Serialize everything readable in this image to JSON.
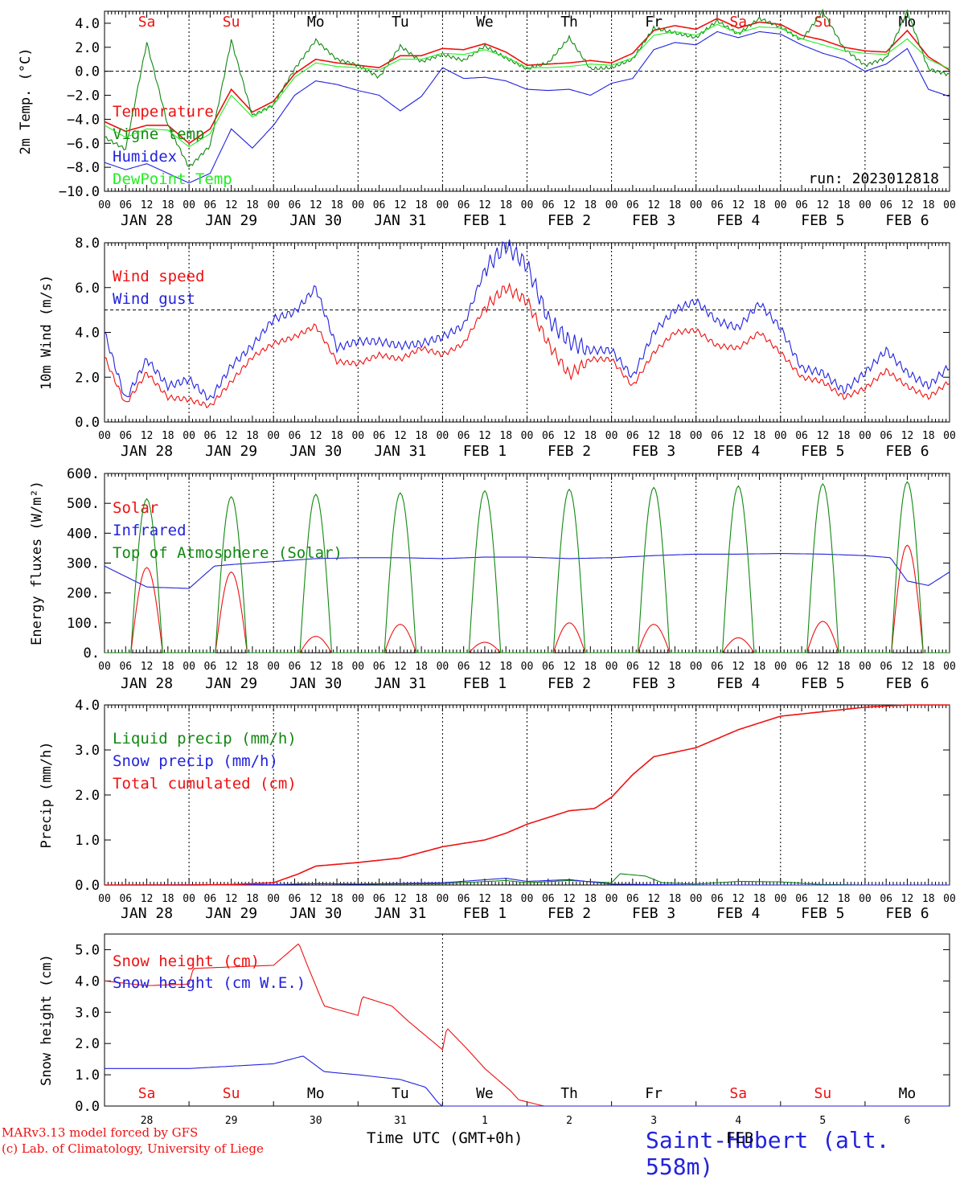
{
  "colors": {
    "red": "#ee1111",
    "blue": "#2222dd",
    "green": "#118811",
    "lightgreen": "#22ee22",
    "black": "#000000"
  },
  "run_label": "run: 2023012818",
  "hour_ticks": [
    "00",
    "06",
    "12",
    "18"
  ],
  "date_labels": [
    "JAN 28",
    "JAN 29",
    "JAN 30",
    "JAN 31",
    "FEB  1",
    "FEB  2",
    "FEB  3",
    "FEB  4",
    "FEB  5",
    "FEB  6"
  ],
  "weekdays": [
    "Sa",
    "Su",
    "Mo",
    "Tu",
    "We",
    "Th",
    "Fr",
    "Sa",
    "Su",
    "Mo"
  ],
  "weekday_colors": [
    "red",
    "red",
    "black",
    "black",
    "black",
    "black",
    "black",
    "red",
    "red",
    "black"
  ],
  "bottom_days": [
    "28",
    "29",
    "30",
    "31",
    "1",
    "2",
    "3",
    "4",
    "5",
    "6"
  ],
  "xlabel": "Time UTC (GMT+0h)",
  "xlabel_suffix": "FEB",
  "station": "Saint-Hubert (alt. 558m)",
  "credit": [
    "MARv3.13 model forced by GFS",
    "(c) Lab. of Climatology, University of Liege"
  ],
  "chart_data": [
    {
      "type": "line",
      "ylabel": "2m Temp. (°C)",
      "ylim": [
        -10,
        5
      ],
      "yticks": [
        "4.0",
        "2.0",
        "0.0",
        "−2.0",
        "−4.0",
        "−6.0",
        "−8.0",
        "−10.0"
      ],
      "ytick_values": [
        4,
        2,
        0,
        -2,
        -4,
        -6,
        -8,
        -10
      ],
      "ref_line": 0,
      "x_days": [
        0,
        0.25,
        0.5,
        0.75,
        1,
        1.25,
        1.5,
        1.75,
        2,
        2.25,
        2.5,
        2.75,
        3,
        3.25,
        3.5,
        3.75,
        4,
        4.25,
        4.5,
        4.75,
        5,
        5.25,
        5.5,
        5.75,
        6,
        6.25,
        6.5,
        6.75,
        7,
        7.25,
        7.5,
        7.75,
        8,
        8.25,
        8.5,
        8.75,
        9,
        9.25,
        9.5,
        9.75,
        10
      ],
      "series": [
        {
          "name": "Temperature",
          "color": "red",
          "values": [
            -4.2,
            -5,
            -4.5,
            -4.5,
            -6,
            -4.8,
            -1.5,
            -3.4,
            -2.5,
            -0.2,
            1,
            0.7,
            0.5,
            0.3,
            1.3,
            1.3,
            1.9,
            1.8,
            2.3,
            1.6,
            0.5,
            0.6,
            0.7,
            0.9,
            0.7,
            1.5,
            3.4,
            3.8,
            3.5,
            4.4,
            3.6,
            4.1,
            3.9,
            3,
            2.6,
            2,
            1.7,
            1.6,
            3.4,
            1.2,
            0.1
          ]
        },
        {
          "name": "Vigne temp",
          "color": "green",
          "values": [
            -5.5,
            -6.5,
            2.4,
            -4.5,
            -8,
            -6.2,
            2.6,
            -3.7,
            -2.8,
            0.2,
            2.6,
            1,
            0.5,
            -0.5,
            2.1,
            0.8,
            1.4,
            0.9,
            2.1,
            1.1,
            0.2,
            0.7,
            2.8,
            0.2,
            0.3,
            1,
            3.6,
            3.2,
            2.8,
            4.2,
            3.1,
            4.4,
            3.7,
            2.6,
            5,
            1.9,
            0.5,
            1.1,
            5,
            0.2,
            -0.3
          ]
        },
        {
          "name": "Humidex",
          "color": "blue",
          "values": [
            -7.6,
            -8.2,
            -7.7,
            -8.5,
            -9.3,
            -8.5,
            -4.8,
            -6.4,
            -4.5,
            -2,
            -0.8,
            -1.1,
            -1.6,
            -2,
            -3.3,
            -2.1,
            0.3,
            -0.6,
            -0.5,
            -0.8,
            -1.5,
            -1.6,
            -1.5,
            -2,
            -1,
            -0.6,
            1.8,
            2.4,
            2.2,
            3.3,
            2.8,
            3.3,
            3.1,
            2.2,
            1.5,
            1,
            0,
            0.6,
            1.9,
            -1.5,
            -2.1
          ]
        },
        {
          "name": "DewPoint Temp",
          "color": "lightgreen",
          "values": [
            -4.5,
            -5.5,
            -4.8,
            -4.9,
            -6.3,
            -5.2,
            -2,
            -3.8,
            -2.8,
            -0.5,
            0.7,
            0.4,
            0.3,
            0.1,
            1,
            1,
            1.5,
            1.4,
            1.8,
            1.2,
            0.3,
            0.3,
            0.4,
            0.6,
            0.5,
            1.1,
            3,
            3.3,
            3,
            3.9,
            3.2,
            3.7,
            3.6,
            2.7,
            2.2,
            1.7,
            1.5,
            1.4,
            2.7,
            1,
            0.2
          ]
        }
      ]
    },
    {
      "type": "line",
      "ylabel": "10m Wind (m/s)",
      "ylim": [
        0,
        8
      ],
      "yticks": [
        "8.0",
        "6.0",
        "4.0",
        "2.0",
        "0.0"
      ],
      "ytick_values": [
        8,
        6,
        4,
        2,
        0
      ],
      "ref_line": 5,
      "x_days": [
        0,
        0.25,
        0.5,
        0.75,
        1,
        1.25,
        1.5,
        1.75,
        2,
        2.25,
        2.5,
        2.75,
        3,
        3.25,
        3.5,
        3.75,
        4,
        4.25,
        4.5,
        4.75,
        5,
        5.25,
        5.5,
        5.75,
        6,
        6.25,
        6.5,
        6.75,
        7,
        7.25,
        7.5,
        7.75,
        8,
        8.25,
        8.5,
        8.75,
        9,
        9.25,
        9.5,
        9.75,
        10
      ],
      "series": [
        {
          "name": "Wind speed",
          "color": "red",
          "values": [
            2.9,
            0.8,
            2.2,
            1.1,
            1,
            0.7,
            1.8,
            2.9,
            3.5,
            3.8,
            4.3,
            2.7,
            2.6,
            3,
            2.8,
            3.3,
            3,
            3.5,
            5.1,
            6,
            5.4,
            3.5,
            2.1,
            2.8,
            2.8,
            1.6,
            3.1,
            4,
            4.1,
            3.4,
            3.3,
            4,
            3.1,
            2,
            1.8,
            1.1,
            1.5,
            2.3,
            1.6,
            1.1,
            1.8
          ]
        },
        {
          "name": "Wind gust",
          "color": "blue",
          "values": [
            4,
            1,
            2.8,
            1.6,
            1.9,
            1,
            2.5,
            3.4,
            4.6,
            4.9,
            6,
            3.3,
            3.6,
            3.6,
            3.4,
            3.5,
            3.8,
            4.3,
            6.8,
            7.9,
            7,
            4.6,
            3.6,
            3.2,
            3.2,
            2,
            4,
            5,
            5.4,
            4.5,
            4.2,
            5.3,
            4.2,
            2.4,
            2.2,
            1.4,
            2.2,
            3.2,
            2.2,
            1.6,
            2.5
          ]
        }
      ]
    },
    {
      "type": "line",
      "ylabel": "Energy fluxes (W/m²)",
      "ylim": [
        0,
        600
      ],
      "yticks": [
        "600.",
        "500.",
        "400.",
        "300.",
        "200.",
        "100.",
        "0."
      ],
      "ytick_values": [
        600,
        500,
        400,
        300,
        200,
        100,
        0
      ],
      "day_peaks_solar": [
        285,
        270,
        55,
        95,
        35,
        100,
        95,
        50,
        105,
        360
      ],
      "day_peaks_toa": [
        515,
        522,
        530,
        535,
        542,
        547,
        553,
        558,
        565,
        572
      ],
      "sun_hours": [
        7.5,
        16.5
      ],
      "series": [
        {
          "name": "Solar",
          "color": "red"
        },
        {
          "name": "Infrared",
          "color": "blue",
          "x_days": [
            0,
            0.5,
            1,
            1.3,
            1.5,
            2,
            2.5,
            3,
            3.5,
            4,
            4.5,
            5,
            5.5,
            6,
            6.5,
            7,
            7.5,
            8,
            8.5,
            9,
            9.3,
            9.5,
            9.75,
            10
          ],
          "values": [
            290,
            220,
            215,
            290,
            295,
            305,
            315,
            318,
            318,
            315,
            320,
            320,
            315,
            318,
            325,
            330,
            330,
            332,
            330,
            325,
            318,
            240,
            225,
            270
          ]
        },
        {
          "name": "Top of Atmosphere (Solar)",
          "color": "green"
        }
      ]
    },
    {
      "type": "line",
      "ylabel": "Precip (mm/h)",
      "ylim": [
        0,
        4
      ],
      "yticks": [
        "4.0",
        "3.0",
        "2.0",
        "1.0",
        "0.0"
      ],
      "ytick_values": [
        4,
        3,
        2,
        1,
        0
      ],
      "series": [
        {
          "name": "Liquid precip (mm/h)",
          "color": "green",
          "x_days": [
            0,
            1,
            2,
            2.5,
            3,
            4,
            4.75,
            5,
            5.5,
            6,
            6.1,
            6.4,
            6.6,
            7,
            7.5,
            8,
            8.5,
            9,
            10
          ],
          "values": [
            0,
            0,
            0.01,
            0.03,
            0.02,
            0.03,
            0.1,
            0.05,
            0.1,
            0.05,
            0.25,
            0.2,
            0.05,
            0.02,
            0.08,
            0.07,
            0.01,
            0,
            0
          ]
        },
        {
          "name": "Snow precip (mm/h)",
          "color": "blue",
          "x_days": [
            0,
            2,
            2.5,
            3,
            4,
            4.75,
            5,
            5.5,
            6,
            7,
            10
          ],
          "values": [
            0,
            0.01,
            0.03,
            0.02,
            0.05,
            0.15,
            0.08,
            0.12,
            0.02,
            0,
            0
          ]
        },
        {
          "name": "Total cumulated (cm)",
          "color": "red",
          "x_days": [
            0,
            1,
            1.5,
            2,
            2.3,
            2.5,
            3,
            3.5,
            4,
            4.5,
            4.75,
            5,
            5.5,
            5.8,
            6,
            6.25,
            6.5,
            7,
            7.5,
            8,
            8.5,
            9,
            9.5,
            10
          ],
          "values": [
            0,
            0,
            0.01,
            0.05,
            0.25,
            0.42,
            0.5,
            0.6,
            0.85,
            1,
            1.15,
            1.35,
            1.65,
            1.7,
            1.95,
            2.45,
            2.85,
            3.05,
            3.45,
            3.75,
            3.85,
            3.95,
            4,
            4
          ]
        }
      ]
    },
    {
      "type": "line",
      "ylabel": "Snow height (cm)",
      "ylim": [
        0,
        5.5
      ],
      "yticks": [
        "5.0",
        "4.0",
        "3.0",
        "2.0",
        "1.0",
        "0.0"
      ],
      "ytick_values": [
        5,
        4,
        3,
        2,
        1,
        0
      ],
      "series": [
        {
          "name": "Snow height (cm)",
          "color": "red",
          "x_days": [
            0,
            0.5,
            1,
            1.05,
            2,
            2.3,
            2.4,
            2.6,
            3,
            3.05,
            3.4,
            3.6,
            4,
            4.05,
            4.3,
            4.5,
            4.8,
            4.9,
            5.2,
            5.5,
            6,
            6.25,
            6.5,
            10
          ],
          "values": [
            4,
            3.85,
            3.9,
            4.4,
            4.5,
            5.2,
            4.5,
            3.2,
            2.9,
            3.5,
            3.2,
            2.7,
            1.8,
            2.5,
            1.8,
            1.2,
            0.5,
            0.2,
            0,
            0,
            0,
            0,
            0,
            0
          ]
        },
        {
          "name": "Snow height (cm W.E.)",
          "color": "blue",
          "x_days": [
            0,
            1,
            2,
            2.35,
            2.6,
            3,
            3.5,
            3.8,
            3.95,
            4,
            10
          ],
          "values": [
            1.2,
            1.2,
            1.35,
            1.6,
            1.1,
            1,
            0.85,
            0.6,
            0.1,
            0,
            0
          ]
        }
      ]
    }
  ]
}
